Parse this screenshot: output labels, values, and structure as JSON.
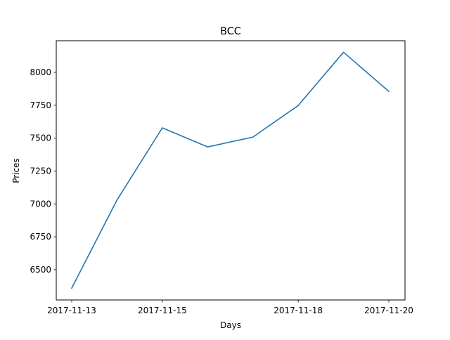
{
  "chart_data": {
    "type": "line",
    "title": "BCC",
    "xlabel": "Days",
    "ylabel": "Prices",
    "x": [
      "2017-11-13",
      "2017-11-14",
      "2017-11-15",
      "2017-11-16",
      "2017-11-17",
      "2017-11-18",
      "2017-11-19",
      "2017-11-20"
    ],
    "series": [
      {
        "values": [
          6360,
          7030,
          7578,
          7433,
          7508,
          7748,
          8153,
          7855
        ],
        "color": "#1f77b4"
      }
    ],
    "xticks": [
      "2017-11-13",
      "2017-11-15",
      "2017-11-18",
      "2017-11-20"
    ],
    "yticks": [
      6500,
      6750,
      7000,
      7250,
      7500,
      7750,
      8000
    ],
    "ylim": [
      6270,
      8240
    ],
    "grid": false,
    "legend": "none"
  }
}
